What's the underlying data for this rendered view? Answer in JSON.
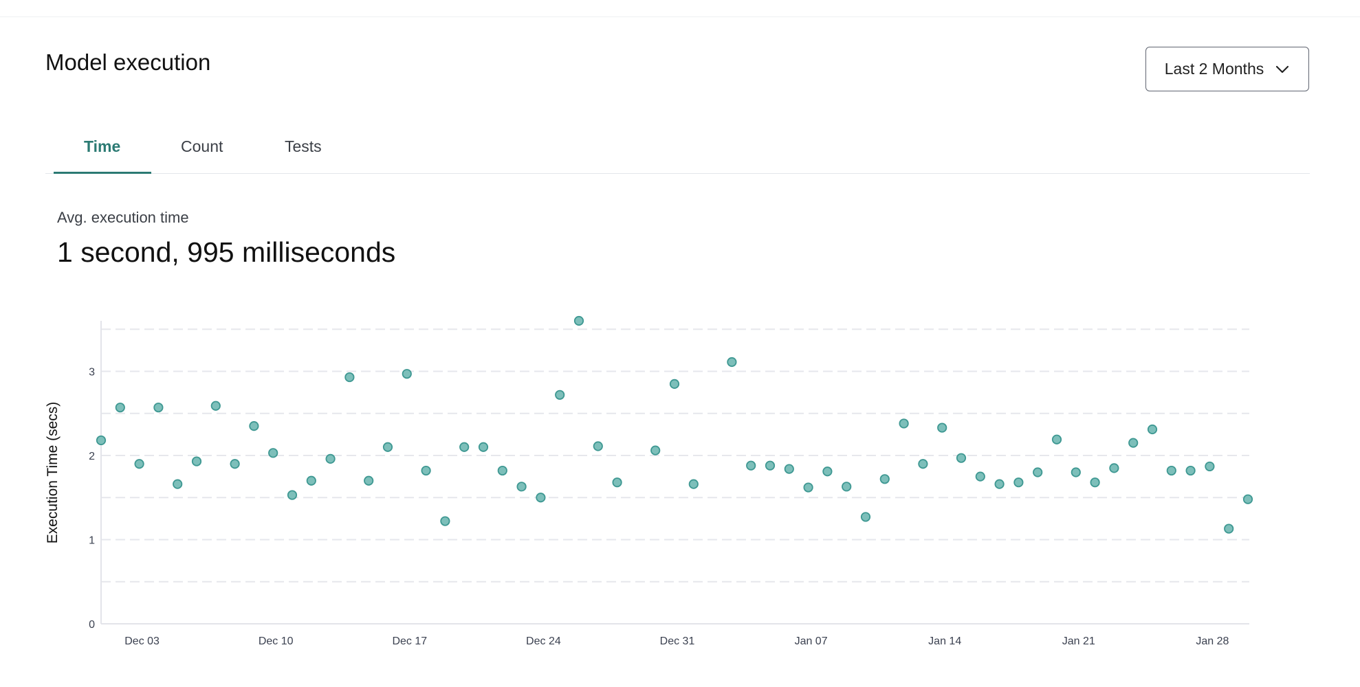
{
  "header": {
    "title": "Model execution",
    "range_select": {
      "selected": "Last 2 Months",
      "icon": "chevron-down-icon"
    }
  },
  "tabs": [
    {
      "label": "Time",
      "active": true
    },
    {
      "label": "Count",
      "active": false
    },
    {
      "label": "Tests",
      "active": false
    }
  ],
  "metric": {
    "label": "Avg. execution time",
    "value": "1 second, 995 milliseconds"
  },
  "colors": {
    "accent": "#2b7a73",
    "marker_fill": "#7dbfba",
    "marker_stroke": "#3e9892",
    "grid": "#e6e7ec"
  },
  "chart_data": {
    "type": "scatter",
    "ylabel": "Execution Time (secs)",
    "xlabel": "",
    "ylim": [
      0,
      3.6
    ],
    "yticks": [
      "0",
      "1",
      "2",
      "3"
    ],
    "xlim": [
      "2023-12-01",
      "2024-01-30"
    ],
    "xticks": [
      {
        "date": "2023-12-03",
        "label": "Dec 03"
      },
      {
        "date": "2023-12-10",
        "label": "Dec 10"
      },
      {
        "date": "2023-12-17",
        "label": "Dec 17"
      },
      {
        "date": "2023-12-24",
        "label": "Dec 24"
      },
      {
        "date": "2023-12-31",
        "label": "Dec 31"
      },
      {
        "date": "2024-01-07",
        "label": "Jan 07"
      },
      {
        "date": "2024-01-14",
        "label": "Jan 14"
      },
      {
        "date": "2024-01-21",
        "label": "Jan 21"
      },
      {
        "date": "2024-01-28",
        "label": "Jan 28"
      }
    ],
    "grid": "horizontal dashed, every 0.5",
    "points": [
      [
        "2023-12-01",
        2.18
      ],
      [
        "2023-12-02",
        2.57
      ],
      [
        "2023-12-03",
        1.9
      ],
      [
        "2023-12-04",
        2.57
      ],
      [
        "2023-12-05",
        1.66
      ],
      [
        "2023-12-06",
        1.93
      ],
      [
        "2023-12-07",
        2.59
      ],
      [
        "2023-12-08",
        1.9
      ],
      [
        "2023-12-09",
        2.35
      ],
      [
        "2023-12-10",
        2.03
      ],
      [
        "2023-12-11",
        1.53
      ],
      [
        "2023-12-12",
        1.7
      ],
      [
        "2023-12-13",
        1.96
      ],
      [
        "2023-12-14",
        2.93
      ],
      [
        "2023-12-15",
        1.7
      ],
      [
        "2023-12-16",
        2.1
      ],
      [
        "2023-12-17",
        2.97
      ],
      [
        "2023-12-18",
        1.82
      ],
      [
        "2023-12-19",
        1.22
      ],
      [
        "2023-12-20",
        2.1
      ],
      [
        "2023-12-21",
        2.1
      ],
      [
        "2023-12-22",
        1.82
      ],
      [
        "2023-12-23",
        1.63
      ],
      [
        "2023-12-24",
        1.5
      ],
      [
        "2023-12-25",
        2.72
      ],
      [
        "2023-12-26",
        3.6
      ],
      [
        "2023-12-27",
        2.11
      ],
      [
        "2023-12-28",
        1.68
      ],
      [
        "2023-12-30",
        2.06
      ],
      [
        "2023-12-31",
        2.85
      ],
      [
        "2024-01-01",
        1.66
      ],
      [
        "2024-01-03",
        3.11
      ],
      [
        "2024-01-04",
        1.88
      ],
      [
        "2024-01-05",
        1.88
      ],
      [
        "2024-01-06",
        1.84
      ],
      [
        "2024-01-07",
        1.62
      ],
      [
        "2024-01-08",
        1.81
      ],
      [
        "2024-01-09",
        1.63
      ],
      [
        "2024-01-10",
        1.27
      ],
      [
        "2024-01-11",
        1.72
      ],
      [
        "2024-01-12",
        2.38
      ],
      [
        "2024-01-13",
        1.9
      ],
      [
        "2024-01-14",
        2.33
      ],
      [
        "2024-01-15",
        1.97
      ],
      [
        "2024-01-16",
        1.75
      ],
      [
        "2024-01-17",
        1.66
      ],
      [
        "2024-01-18",
        1.68
      ],
      [
        "2024-01-19",
        1.8
      ],
      [
        "2024-01-20",
        2.19
      ],
      [
        "2024-01-21",
        1.8
      ],
      [
        "2024-01-22",
        1.68
      ],
      [
        "2024-01-23",
        1.85
      ],
      [
        "2024-01-24",
        2.15
      ],
      [
        "2024-01-25",
        2.31
      ],
      [
        "2024-01-26",
        1.82
      ],
      [
        "2024-01-27",
        1.82
      ],
      [
        "2024-01-28",
        1.87
      ],
      [
        "2024-01-29",
        1.13
      ],
      [
        "2024-01-30",
        1.48
      ]
    ]
  }
}
